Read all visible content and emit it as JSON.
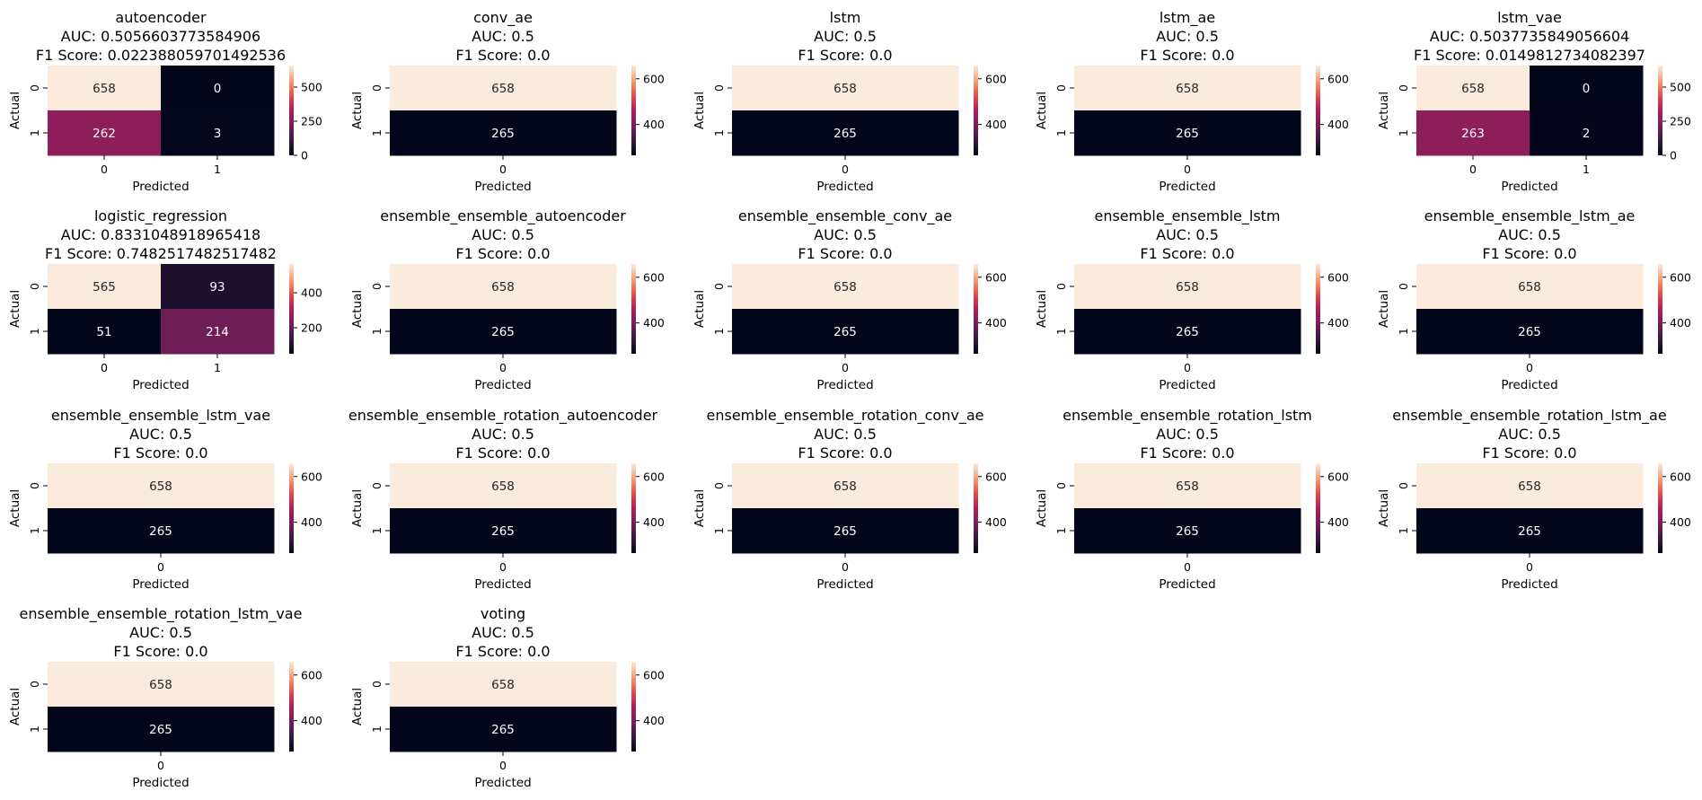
{
  "figure": {
    "colormap_name": "rocket",
    "colormap_stops": [
      "#03051a",
      "#2a1636",
      "#541e4e",
      "#841e5a",
      "#b41c5a",
      "#dd3c4f",
      "#f37651",
      "#f6b48e",
      "#faebdd"
    ],
    "annotation_dark_text_color": "#262626",
    "annotation_light_text_color": "#ffffff"
  },
  "chart_data": [
    {
      "type": "heatmap",
      "title": [
        "autoencoder",
        "AUC: 0.5056603773584906",
        "F1 Score: 0.022388059701492536"
      ],
      "xlabel": "Predicted",
      "ylabel": "Actual",
      "x_categories": [
        "0",
        "1"
      ],
      "y_categories": [
        "0",
        "1"
      ],
      "values": [
        [
          658,
          0
        ],
        [
          262,
          3
        ]
      ],
      "color_range": [
        0,
        658
      ],
      "colorbar_ticks": [
        "0",
        "250",
        "500"
      ],
      "colorbar_tick_values": [
        0,
        250,
        500
      ]
    },
    {
      "type": "heatmap",
      "title": [
        "conv_ae",
        "AUC: 0.5",
        "F1 Score: 0.0"
      ],
      "xlabel": "Predicted",
      "ylabel": "Actual",
      "x_categories": [
        "0"
      ],
      "y_categories": [
        "0",
        "1"
      ],
      "values": [
        [
          658
        ],
        [
          265
        ]
      ],
      "color_range": [
        265,
        658
      ],
      "colorbar_ticks": [
        "400",
        "600"
      ],
      "colorbar_tick_values": [
        400,
        600
      ]
    },
    {
      "type": "heatmap",
      "title": [
        "lstm",
        "AUC: 0.5",
        "F1 Score: 0.0"
      ],
      "xlabel": "Predicted",
      "ylabel": "Actual",
      "x_categories": [
        "0"
      ],
      "y_categories": [
        "0",
        "1"
      ],
      "values": [
        [
          658
        ],
        [
          265
        ]
      ],
      "color_range": [
        265,
        658
      ],
      "colorbar_ticks": [
        "400",
        "600"
      ],
      "colorbar_tick_values": [
        400,
        600
      ]
    },
    {
      "type": "heatmap",
      "title": [
        "lstm_ae",
        "AUC: 0.5",
        "F1 Score: 0.0"
      ],
      "xlabel": "Predicted",
      "ylabel": "Actual",
      "x_categories": [
        "0"
      ],
      "y_categories": [
        "0",
        "1"
      ],
      "values": [
        [
          658
        ],
        [
          265
        ]
      ],
      "color_range": [
        265,
        658
      ],
      "colorbar_ticks": [
        "400",
        "600"
      ],
      "colorbar_tick_values": [
        400,
        600
      ]
    },
    {
      "type": "heatmap",
      "title": [
        "lstm_vae",
        "AUC: 0.5037735849056604",
        "F1 Score: 0.0149812734082397"
      ],
      "xlabel": "Predicted",
      "ylabel": "Actual",
      "x_categories": [
        "0",
        "1"
      ],
      "y_categories": [
        "0",
        "1"
      ],
      "values": [
        [
          658,
          0
        ],
        [
          263,
          2
        ]
      ],
      "color_range": [
        0,
        658
      ],
      "colorbar_ticks": [
        "0",
        "250",
        "500"
      ],
      "colorbar_tick_values": [
        0,
        250,
        500
      ]
    },
    {
      "type": "heatmap",
      "title": [
        "logistic_regression",
        "AUC: 0.8331048918965418",
        "F1 Score: 0.7482517482517482"
      ],
      "xlabel": "Predicted",
      "ylabel": "Actual",
      "x_categories": [
        "0",
        "1"
      ],
      "y_categories": [
        "0",
        "1"
      ],
      "values": [
        [
          565,
          93
        ],
        [
          51,
          214
        ]
      ],
      "color_range": [
        51,
        565
      ],
      "colorbar_ticks": [
        "200",
        "400"
      ],
      "colorbar_tick_values": [
        200,
        400
      ]
    },
    {
      "type": "heatmap",
      "title": [
        "ensemble_ensemble_autoencoder",
        "AUC: 0.5",
        "F1 Score: 0.0"
      ],
      "xlabel": "Predicted",
      "ylabel": "Actual",
      "x_categories": [
        "0"
      ],
      "y_categories": [
        "0",
        "1"
      ],
      "values": [
        [
          658
        ],
        [
          265
        ]
      ],
      "color_range": [
        265,
        658
      ],
      "colorbar_ticks": [
        "400",
        "600"
      ],
      "colorbar_tick_values": [
        400,
        600
      ]
    },
    {
      "type": "heatmap",
      "title": [
        "ensemble_ensemble_conv_ae",
        "AUC: 0.5",
        "F1 Score: 0.0"
      ],
      "xlabel": "Predicted",
      "ylabel": "Actual",
      "x_categories": [
        "0"
      ],
      "y_categories": [
        "0",
        "1"
      ],
      "values": [
        [
          658
        ],
        [
          265
        ]
      ],
      "color_range": [
        265,
        658
      ],
      "colorbar_ticks": [
        "400",
        "600"
      ],
      "colorbar_tick_values": [
        400,
        600
      ]
    },
    {
      "type": "heatmap",
      "title": [
        "ensemble_ensemble_lstm",
        "AUC: 0.5",
        "F1 Score: 0.0"
      ],
      "xlabel": "Predicted",
      "ylabel": "Actual",
      "x_categories": [
        "0"
      ],
      "y_categories": [
        "0",
        "1"
      ],
      "values": [
        [
          658
        ],
        [
          265
        ]
      ],
      "color_range": [
        265,
        658
      ],
      "colorbar_ticks": [
        "400",
        "600"
      ],
      "colorbar_tick_values": [
        400,
        600
      ]
    },
    {
      "type": "heatmap",
      "title": [
        "ensemble_ensemble_lstm_ae",
        "AUC: 0.5",
        "F1 Score: 0.0"
      ],
      "xlabel": "Predicted",
      "ylabel": "Actual",
      "x_categories": [
        "0"
      ],
      "y_categories": [
        "0",
        "1"
      ],
      "values": [
        [
          658
        ],
        [
          265
        ]
      ],
      "color_range": [
        265,
        658
      ],
      "colorbar_ticks": [
        "400",
        "600"
      ],
      "colorbar_tick_values": [
        400,
        600
      ]
    },
    {
      "type": "heatmap",
      "title": [
        "ensemble_ensemble_lstm_vae",
        "AUC: 0.5",
        "F1 Score: 0.0"
      ],
      "xlabel": "Predicted",
      "ylabel": "Actual",
      "x_categories": [
        "0"
      ],
      "y_categories": [
        "0",
        "1"
      ],
      "values": [
        [
          658
        ],
        [
          265
        ]
      ],
      "color_range": [
        265,
        658
      ],
      "colorbar_ticks": [
        "400",
        "600"
      ],
      "colorbar_tick_values": [
        400,
        600
      ]
    },
    {
      "type": "heatmap",
      "title": [
        "ensemble_ensemble_rotation_autoencoder",
        "AUC: 0.5",
        "F1 Score: 0.0"
      ],
      "xlabel": "Predicted",
      "ylabel": "Actual",
      "x_categories": [
        "0"
      ],
      "y_categories": [
        "0",
        "1"
      ],
      "values": [
        [
          658
        ],
        [
          265
        ]
      ],
      "color_range": [
        265,
        658
      ],
      "colorbar_ticks": [
        "400",
        "600"
      ],
      "colorbar_tick_values": [
        400,
        600
      ]
    },
    {
      "type": "heatmap",
      "title": [
        "ensemble_ensemble_rotation_conv_ae",
        "AUC: 0.5",
        "F1 Score: 0.0"
      ],
      "xlabel": "Predicted",
      "ylabel": "Actual",
      "x_categories": [
        "0"
      ],
      "y_categories": [
        "0",
        "1"
      ],
      "values": [
        [
          658
        ],
        [
          265
        ]
      ],
      "color_range": [
        265,
        658
      ],
      "colorbar_ticks": [
        "400",
        "600"
      ],
      "colorbar_tick_values": [
        400,
        600
      ]
    },
    {
      "type": "heatmap",
      "title": [
        "ensemble_ensemble_rotation_lstm",
        "AUC: 0.5",
        "F1 Score: 0.0"
      ],
      "xlabel": "Predicted",
      "ylabel": "Actual",
      "x_categories": [
        "0"
      ],
      "y_categories": [
        "0",
        "1"
      ],
      "values": [
        [
          658
        ],
        [
          265
        ]
      ],
      "color_range": [
        265,
        658
      ],
      "colorbar_ticks": [
        "400",
        "600"
      ],
      "colorbar_tick_values": [
        400,
        600
      ]
    },
    {
      "type": "heatmap",
      "title": [
        "ensemble_ensemble_rotation_lstm_ae",
        "AUC: 0.5",
        "F1 Score: 0.0"
      ],
      "xlabel": "Predicted",
      "ylabel": "Actual",
      "x_categories": [
        "0"
      ],
      "y_categories": [
        "0",
        "1"
      ],
      "values": [
        [
          658
        ],
        [
          265
        ]
      ],
      "color_range": [
        265,
        658
      ],
      "colorbar_ticks": [
        "400",
        "600"
      ],
      "colorbar_tick_values": [
        400,
        600
      ]
    },
    {
      "type": "heatmap",
      "title": [
        "ensemble_ensemble_rotation_lstm_vae",
        "AUC: 0.5",
        "F1 Score: 0.0"
      ],
      "xlabel": "Predicted",
      "ylabel": "Actual",
      "x_categories": [
        "0"
      ],
      "y_categories": [
        "0",
        "1"
      ],
      "values": [
        [
          658
        ],
        [
          265
        ]
      ],
      "color_range": [
        265,
        658
      ],
      "colorbar_ticks": [
        "400",
        "600"
      ],
      "colorbar_tick_values": [
        400,
        600
      ]
    },
    {
      "type": "heatmap",
      "title": [
        "voting",
        "AUC: 0.5",
        "F1 Score: 0.0"
      ],
      "xlabel": "Predicted",
      "ylabel": "Actual",
      "x_categories": [
        "0"
      ],
      "y_categories": [
        "0",
        "1"
      ],
      "values": [
        [
          658
        ],
        [
          265
        ]
      ],
      "color_range": [
        265,
        658
      ],
      "colorbar_ticks": [
        "400",
        "600"
      ],
      "colorbar_tick_values": [
        400,
        600
      ]
    }
  ]
}
